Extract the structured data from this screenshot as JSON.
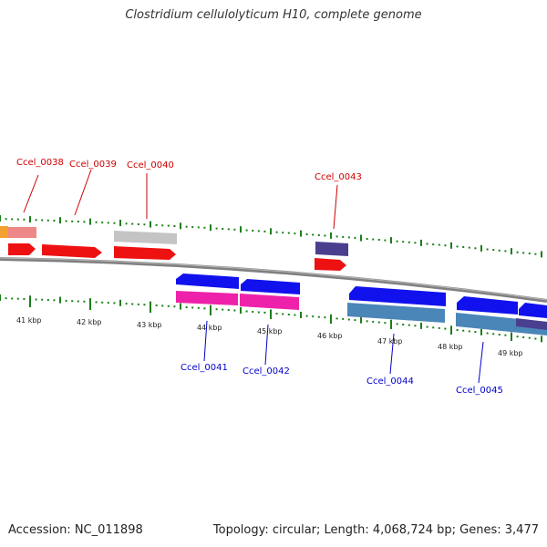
{
  "title": "Clostridium cellulolyticum H10, complete genome",
  "footer": {
    "accession": "Accession: NC_011898",
    "topology": "Topology: circular; Length: 4,068,724 bp; Genes: 3,477"
  },
  "colors": {
    "forward_label": "#cc0000",
    "reverse_label": "#0000cc",
    "ruler_ticks": "#1a7f1a",
    "backbone": "#808080",
    "cds_red": "#ee1111",
    "cds_blue": "#1111ee",
    "cds_magenta": "#ee22aa",
    "cds_steel": "#4a86b8",
    "cds_gray": "#c4c4c4",
    "cds_pink": "#ee8888",
    "cds_orange": "#f2a030",
    "cds_purple": "#4a3f8f"
  },
  "ruler_labels": [
    "41 kbp",
    "42 kbp",
    "43 kbp",
    "44 kbp",
    "45 kbp",
    "46 kbp",
    "47 kbp",
    "48 kbp",
    "49 kbp"
  ],
  "gene_labels": {
    "forward": [
      "Ccel_0038",
      "Ccel_0039",
      "Ccel_0040",
      "Ccel_0043"
    ],
    "reverse": [
      "Ccel_0041",
      "Ccel_0042",
      "Ccel_0044",
      "Ccel_0045"
    ]
  }
}
